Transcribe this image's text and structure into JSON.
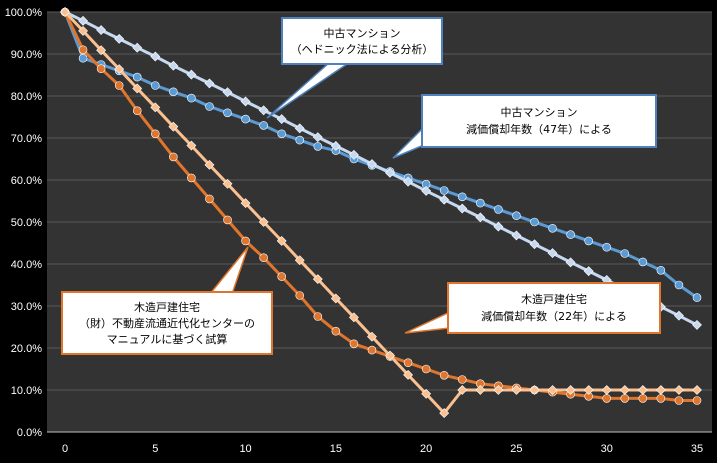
{
  "chart_data": {
    "type": "line",
    "title": "",
    "xlabel": "",
    "ylabel": "",
    "xlim": [
      0,
      35
    ],
    "ylim": [
      0,
      100
    ],
    "x_ticks": [
      0,
      5,
      10,
      15,
      20,
      25,
      30,
      35
    ],
    "x_tick_labels": [
      "0",
      "5",
      "10",
      "15",
      "20",
      "25",
      "30",
      "35"
    ],
    "y_ticks": [
      0,
      10,
      20,
      30,
      40,
      50,
      60,
      70,
      80,
      90,
      100
    ],
    "y_tick_labels": [
      "0.0%",
      "10.0%",
      "20.0%",
      "30.0%",
      "40.0%",
      "50.0%",
      "60.0%",
      "70.0%",
      "80.0%",
      "90.0%",
      "100.0%"
    ],
    "grid": true,
    "background": "#333333",
    "x": [
      0,
      1,
      2,
      3,
      4,
      5,
      6,
      7,
      8,
      9,
      10,
      11,
      12,
      13,
      14,
      15,
      16,
      17,
      18,
      19,
      20,
      21,
      22,
      23,
      24,
      25,
      26,
      27,
      28,
      29,
      30,
      31,
      32,
      33,
      34,
      35
    ],
    "series": [
      {
        "id": "condo_hedonic",
        "color": "#5b9bd5",
        "marker": "circle",
        "values": [
          100,
          89,
          87.5,
          86,
          84.5,
          82.5,
          81,
          79.5,
          77.5,
          76,
          74.5,
          73,
          71,
          69.5,
          68,
          67,
          65,
          63.5,
          62,
          60.5,
          59,
          57.5,
          56,
          54.5,
          53,
          51.5,
          50,
          48.5,
          47,
          45.5,
          44,
          42.5,
          40.5,
          38.5,
          35,
          32
        ]
      },
      {
        "id": "condo_47yr",
        "color": "#c6d9f1",
        "marker": "diamond",
        "values": [
          100,
          97.9,
          95.7,
          93.6,
          91.5,
          89.4,
          87.2,
          85.1,
          83,
          80.9,
          78.7,
          76.6,
          74.5,
          72.3,
          70.2,
          68.1,
          66,
          63.8,
          61.7,
          59.6,
          57.4,
          55.3,
          53.2,
          51.1,
          48.9,
          46.8,
          44.7,
          42.6,
          40.4,
          38.3,
          36.2,
          34,
          31.9,
          29.8,
          27.7,
          25.5
        ]
      },
      {
        "id": "house_reform_center",
        "color": "#e0752d",
        "marker": "circle",
        "values": [
          100,
          91,
          86.5,
          82.5,
          76.5,
          71,
          65.5,
          60.5,
          55.5,
          50.5,
          45.5,
          41.5,
          37,
          32.5,
          27.5,
          24,
          21,
          19.5,
          18,
          16.5,
          15,
          13.5,
          12.5,
          11.5,
          11,
          10.5,
          10,
          9.5,
          9,
          8.5,
          8,
          8,
          8,
          8,
          7.5,
          7.5
        ]
      },
      {
        "id": "house_22yr",
        "color": "#fac090",
        "marker": "diamond",
        "values": [
          100,
          95.5,
          90.9,
          86.4,
          81.8,
          77.3,
          72.7,
          68.2,
          63.6,
          59.1,
          54.5,
          50,
          45.5,
          40.9,
          36.4,
          31.8,
          27.3,
          22.7,
          18.2,
          13.6,
          9.1,
          4.5,
          10,
          10,
          10,
          10,
          10,
          10,
          10,
          10,
          10,
          10,
          10,
          10,
          10,
          10
        ]
      }
    ],
    "annotations": [
      {
        "id": "callout_condo_hedonic",
        "lines": [
          "中古マンション",
          "（ヘドニック法による分析）"
        ]
      },
      {
        "id": "callout_condo_47yr",
        "lines": [
          "中古マンション",
          "減価償却年数（47年）による"
        ]
      },
      {
        "id": "callout_house_center",
        "lines": [
          "木造戸建住宅",
          "（財）不動産流通近代化センターの",
          "マニュアルに基づく試算"
        ]
      },
      {
        "id": "callout_house_22yr",
        "lines": [
          "木造戸建住宅",
          "減価償却年数（22年）による"
        ]
      }
    ]
  }
}
